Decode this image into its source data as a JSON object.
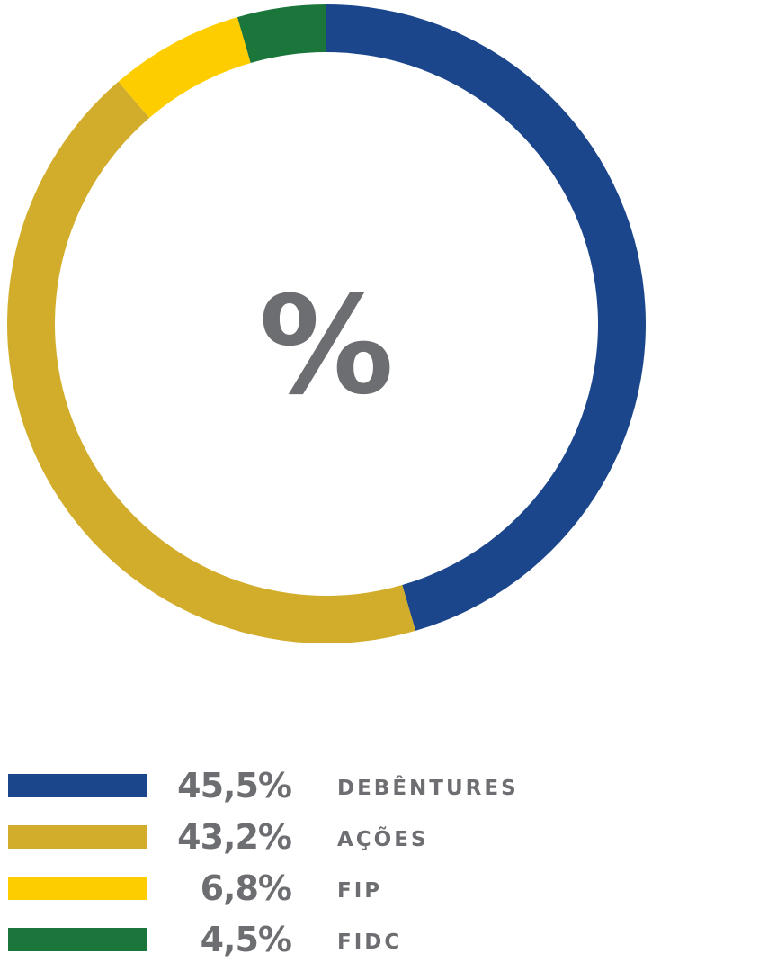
{
  "chart_data": {
    "type": "pie",
    "center_label": "%",
    "series": [
      {
        "name": "DEBÊNTURES",
        "value": 45.5,
        "value_label": "45,5%",
        "color": "#1c468b"
      },
      {
        "name": "AÇÕES",
        "value": 43.2,
        "value_label": "43,2%",
        "color": "#d2ad2b"
      },
      {
        "name": "FIP",
        "value": 6.8,
        "value_label": "6,8%",
        "color": "#fecd00"
      },
      {
        "name": "FIDC",
        "value": 4.5,
        "value_label": "4,5%",
        "color": "#1b763c"
      }
    ],
    "legend_position": "bottom"
  }
}
